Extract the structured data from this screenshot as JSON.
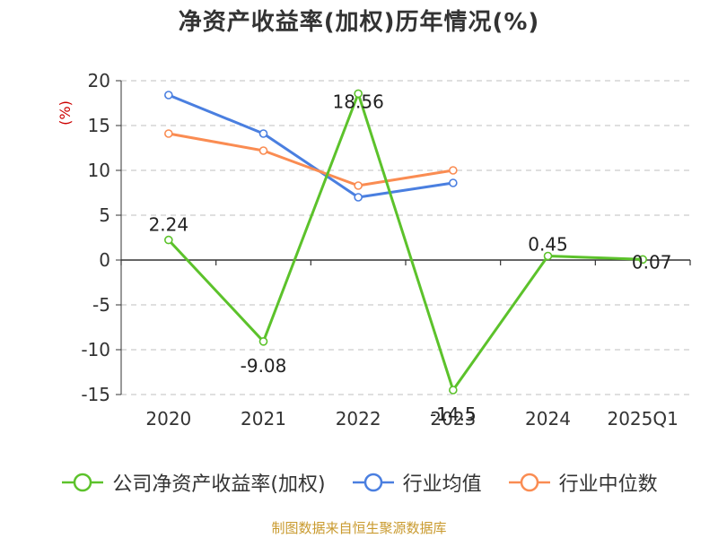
{
  "chart_data": {
    "type": "line",
    "title": "净资产收益率(加权)历年情况(%)",
    "y_unit": "(%)",
    "xlabel": "",
    "ylabel": "",
    "categories": [
      "2020",
      "2021",
      "2022",
      "2023",
      "2024",
      "2025Q1"
    ],
    "ylim": [
      -15,
      20
    ],
    "yticks": [
      20,
      15,
      10,
      5,
      0,
      -5,
      -10,
      -15
    ],
    "grid": "horizontal-dashed",
    "legend_position": "bottom",
    "series": [
      {
        "name": "公司净资产收益率(加权)",
        "color": "#5cc22b",
        "values": [
          2.24,
          -9.08,
          18.56,
          -14.5,
          0.45,
          0.07
        ],
        "labels": [
          "2.24",
          "-9.08",
          "18.56",
          "-14.5",
          "0.45",
          "0.07"
        ]
      },
      {
        "name": "行业均值",
        "color": "#4a7fe0",
        "values": [
          18.4,
          14.1,
          7.0,
          8.6,
          null,
          null
        ]
      },
      {
        "name": "行业中位数",
        "color": "#fa8c52",
        "values": [
          14.1,
          12.2,
          8.3,
          10.0,
          null,
          null
        ]
      }
    ]
  },
  "source": "制图数据来自恒生聚源数据库"
}
